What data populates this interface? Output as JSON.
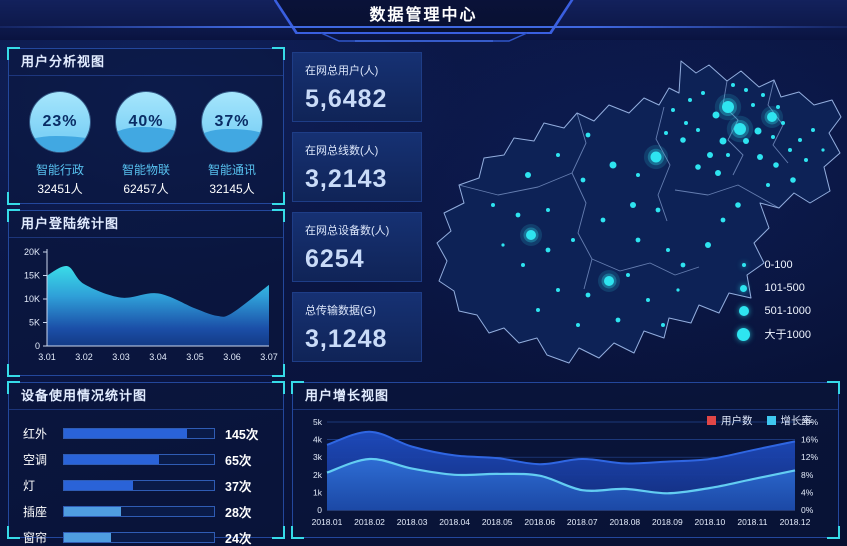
{
  "header": {
    "title": "数据管理中心"
  },
  "panels": {
    "analysis": {
      "title": "用户分析视图"
    },
    "login": {
      "title": "用户登陆统计图"
    },
    "device": {
      "title": "设备使用情况统计图"
    },
    "growth": {
      "title": "用户增长视图"
    }
  },
  "gauges": [
    {
      "pct": "23%",
      "value": 23,
      "name": "智能行政",
      "count": "32451人"
    },
    {
      "pct": "40%",
      "value": 40,
      "name": "智能物联",
      "count": "62457人"
    },
    {
      "pct": "37%",
      "value": 37,
      "name": "智能通讯",
      "count": "32145人"
    }
  ],
  "stats": [
    {
      "label": "在网总用户(人)",
      "value": "5,6482"
    },
    {
      "label": "在网总线数(人)",
      "value": "3,2143"
    },
    {
      "label": "在网总设备数(人)",
      "value": "6254"
    },
    {
      "label": "总传输数据(G)",
      "value": "3,1248"
    }
  ],
  "device_bars": [
    {
      "label": "红外",
      "value": "145次",
      "width": 82,
      "color": "#2a63d8"
    },
    {
      "label": "空调",
      "value": "65次",
      "width": 63,
      "color": "#2a63d8"
    },
    {
      "label": "灯",
      "value": "37次",
      "width": 46,
      "color": "#2a63d8"
    },
    {
      "label": "插座",
      "value": "28次",
      "width": 38,
      "color": "#4f9de0"
    },
    {
      "label": "窗帘",
      "value": "24次",
      "width": 31,
      "color": "#4f9de0"
    }
  ],
  "map": {
    "legend": [
      {
        "label": "0-100",
        "d": 4
      },
      {
        "label": "101-500",
        "d": 7
      },
      {
        "label": "501-1000",
        "d": 10
      },
      {
        "label": "大于1000",
        "d": 13
      }
    ],
    "dots": [
      [
        300,
        62,
        6,
        1
      ],
      [
        312,
        84,
        6,
        1
      ],
      [
        344,
        72,
        5,
        1
      ],
      [
        228,
        112,
        5.5,
        1
      ],
      [
        103,
        190,
        5,
        1
      ],
      [
        181,
        236,
        5,
        1
      ],
      [
        288,
        70,
        3.5
      ],
      [
        295,
        96,
        3.5
      ],
      [
        330,
        86,
        3.5
      ],
      [
        282,
        110,
        3
      ],
      [
        318,
        96,
        3
      ],
      [
        332,
        112,
        3
      ],
      [
        290,
        128,
        3
      ],
      [
        185,
        120,
        3.5
      ],
      [
        100,
        130,
        3
      ],
      [
        205,
        160,
        3
      ],
      [
        280,
        200,
        3
      ],
      [
        310,
        160,
        2.8
      ],
      [
        365,
        135,
        2.8
      ],
      [
        255,
        95,
        2.8
      ],
      [
        348,
        120,
        2.8
      ],
      [
        270,
        122,
        2.8
      ],
      [
        262,
        55,
        2
      ],
      [
        275,
        48,
        2
      ],
      [
        270,
        85,
        2
      ],
      [
        300,
        110,
        2
      ],
      [
        325,
        60,
        2
      ],
      [
        335,
        50,
        2
      ],
      [
        350,
        62,
        2
      ],
      [
        318,
        45,
        2
      ],
      [
        305,
        40,
        2
      ],
      [
        345,
        92,
        2
      ],
      [
        355,
        78,
        2
      ],
      [
        362,
        105,
        2
      ],
      [
        258,
        78,
        2
      ],
      [
        245,
        65,
        2
      ],
      [
        238,
        88,
        2
      ],
      [
        372,
        95,
        2
      ],
      [
        385,
        85,
        2
      ],
      [
        378,
        115,
        2
      ],
      [
        395,
        105,
        1.6
      ],
      [
        340,
        140,
        2
      ],
      [
        160,
        90,
        2.4
      ],
      [
        130,
        110,
        2
      ],
      [
        155,
        135,
        2.4
      ],
      [
        210,
        130,
        2
      ],
      [
        65,
        160,
        2
      ],
      [
        90,
        170,
        2.4
      ],
      [
        120,
        165,
        2
      ],
      [
        230,
        165,
        2.4
      ],
      [
        175,
        175,
        2.4
      ],
      [
        145,
        195,
        2
      ],
      [
        120,
        205,
        2.4
      ],
      [
        95,
        220,
        2
      ],
      [
        75,
        200,
        1.6
      ],
      [
        210,
        195,
        2.4
      ],
      [
        240,
        205,
        2
      ],
      [
        255,
        220,
        2.4
      ],
      [
        200,
        230,
        2
      ],
      [
        160,
        250,
        2.4
      ],
      [
        130,
        245,
        2
      ],
      [
        110,
        265,
        2
      ],
      [
        220,
        255,
        2
      ],
      [
        250,
        245,
        1.6
      ],
      [
        190,
        275,
        2.4
      ],
      [
        150,
        280,
        2
      ],
      [
        235,
        280,
        2
      ],
      [
        295,
        175,
        2.4
      ]
    ],
    "dot_color": "#2ee4f0"
  },
  "growth_legend": [
    {
      "label": "用户数",
      "color": "#e04747"
    },
    {
      "label": "增长率",
      "color": "#3fc8f0"
    }
  ],
  "chart_data": [
    {
      "id": "login",
      "type": "area",
      "title": "用户登陆统计图",
      "categories": [
        "3.01",
        "3.02",
        "3.03",
        "3.04",
        "3.05",
        "3.06",
        "3.07"
      ],
      "values": [
        15000,
        13200,
        10300,
        11200,
        8000,
        7000,
        13000
      ],
      "peak": 17000,
      "dip": 6400,
      "render_points": [
        [
          0,
          15
        ],
        [
          0.55,
          17
        ],
        [
          1,
          13.2
        ],
        [
          2,
          10.3
        ],
        [
          3,
          11.2
        ],
        [
          4,
          8
        ],
        [
          4.6,
          6.4
        ],
        [
          5,
          7
        ],
        [
          6,
          13
        ]
      ],
      "y_ticks": [
        "0",
        "5K",
        "10K",
        "15K",
        "20K"
      ],
      "ylim": [
        0,
        20000
      ],
      "grid": false,
      "xlabel": "",
      "ylabel": ""
    },
    {
      "id": "growth",
      "type": "area",
      "title": "用户增长视图",
      "categories": [
        "2018.01",
        "2018.02",
        "2018.03",
        "2018.04",
        "2018.05",
        "2018.06",
        "2018.07",
        "2018.08",
        "2018.09",
        "2018.10",
        "2018.11",
        "2018.12"
      ],
      "series": [
        {
          "name": "用户数",
          "axis": "left",
          "values_k": [
            3.7,
            4.45,
            3.6,
            3.1,
            2.95,
            2.6,
            2.9,
            2.65,
            2.75,
            2.9,
            3.4,
            3.9
          ]
        },
        {
          "name": "增长率",
          "axis": "right",
          "values_pct": [
            8.5,
            11.6,
            9.4,
            8,
            8.2,
            7.8,
            4.5,
            4.8,
            3.8,
            5,
            7,
            9
          ]
        }
      ],
      "left_ticks": [
        "0",
        "1k",
        "2k",
        "3k",
        "4k",
        "5k"
      ],
      "right_ticks": [
        "0%",
        "4%",
        "8%",
        "12%",
        "16%",
        "20%"
      ],
      "left_lim": [
        0,
        5000
      ],
      "right_lim": [
        0,
        20
      ],
      "grid": true,
      "legend_position": "top-right"
    },
    {
      "id": "device",
      "type": "bar",
      "categories": [
        "红外",
        "空调",
        "灯",
        "插座",
        "窗帘"
      ],
      "values": [
        145,
        65,
        37,
        28,
        24
      ],
      "unit": "次"
    },
    {
      "id": "user-analysis",
      "type": "pie",
      "categories": [
        "智能行政",
        "智能物联",
        "智能通讯"
      ],
      "percent": [
        23,
        40,
        37
      ],
      "counts": [
        32451,
        62457,
        32145
      ]
    }
  ],
  "colors": {
    "accent_cyan": "#36dbe8",
    "panel_border": "#23479c",
    "bar_blue": "#2a63d8",
    "bar_light": "#4f9de0",
    "map_fill": "#0d2256",
    "map_border": "#93aede",
    "growth_dark_fill": "#1c44ae",
    "growth_dark_stroke": "#2f66e2",
    "growth_light_fill": "#2a64c8",
    "growth_light_stroke": "#63cdf2",
    "legend_red": "#e04747",
    "legend_cyan": "#3fc8f0"
  }
}
